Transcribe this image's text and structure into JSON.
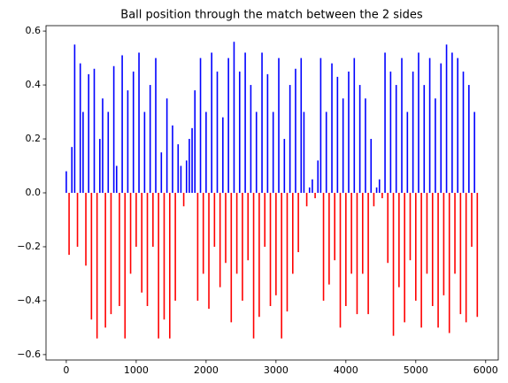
{
  "chart_data": {
    "type": "stem",
    "title": "Ball position through the match between the 2 sides",
    "x": [
      0,
      40,
      80,
      120,
      160,
      200,
      240,
      280,
      320,
      360,
      400,
      440,
      480,
      520,
      560,
      600,
      640,
      680,
      720,
      760,
      800,
      840,
      880,
      920,
      960,
      1000,
      1040,
      1080,
      1120,
      1160,
      1200,
      1240,
      1280,
      1320,
      1360,
      1400,
      1440,
      1480,
      1520,
      1560,
      1600,
      1640,
      1680,
      1720,
      1760,
      1800,
      1840,
      1880,
      1920,
      1960,
      2000,
      2040,
      2080,
      2120,
      2160,
      2200,
      2240,
      2280,
      2320,
      2360,
      2400,
      2440,
      2480,
      2520,
      2560,
      2600,
      2640,
      2680,
      2720,
      2760,
      2800,
      2840,
      2880,
      2920,
      2960,
      3000,
      3040,
      3080,
      3120,
      3160,
      3200,
      3240,
      3280,
      3320,
      3360,
      3400,
      3440,
      3480,
      3520,
      3560,
      3600,
      3640,
      3680,
      3720,
      3760,
      3800,
      3840,
      3880,
      3920,
      3960,
      4000,
      4040,
      4080,
      4120,
      4160,
      4200,
      4240,
      4280,
      4320,
      4360,
      4400,
      4440,
      4480,
      4520,
      4560,
      4600,
      4640,
      4680,
      4720,
      4760,
      4800,
      4840,
      4880,
      4920,
      4960,
      5000,
      5040,
      5080,
      5120,
      5160,
      5200,
      5240,
      5280,
      5320,
      5360,
      5400,
      5440,
      5480,
      5520,
      5560,
      5600,
      5640,
      5680,
      5720,
      5760,
      5800,
      5840,
      5880
    ],
    "values": [
      0.08,
      -0.23,
      0.17,
      0.55,
      -0.2,
      0.48,
      0.3,
      -0.27,
      0.44,
      -0.47,
      0.46,
      -0.54,
      0.2,
      0.35,
      -0.5,
      0.3,
      -0.45,
      0.47,
      0.1,
      -0.42,
      0.51,
      -0.54,
      0.38,
      -0.3,
      0.45,
      -0.2,
      0.52,
      -0.37,
      0.3,
      -0.42,
      0.4,
      -0.2,
      0.5,
      -0.54,
      0.15,
      -0.47,
      0.35,
      -0.54,
      0.25,
      -0.4,
      0.18,
      0.1,
      -0.05,
      0.12,
      0.2,
      0.24,
      0.38,
      -0.4,
      0.5,
      -0.3,
      0.3,
      -0.43,
      0.52,
      -0.2,
      0.45,
      -0.35,
      0.28,
      -0.26,
      0.5,
      -0.48,
      0.56,
      -0.3,
      0.45,
      -0.4,
      0.52,
      -0.25,
      0.4,
      -0.54,
      0.3,
      -0.46,
      0.52,
      -0.2,
      0.44,
      -0.42,
      0.3,
      -0.38,
      0.5,
      -0.54,
      0.2,
      -0.44,
      0.4,
      -0.3,
      0.46,
      -0.22,
      0.5,
      0.3,
      -0.05,
      0.02,
      0.05,
      -0.02,
      0.12,
      0.5,
      -0.4,
      0.3,
      -0.34,
      0.48,
      -0.25,
      0.43,
      -0.5,
      0.35,
      -0.42,
      0.45,
      -0.3,
      0.5,
      -0.45,
      0.4,
      -0.3,
      0.35,
      -0.45,
      0.2,
      -0.05,
      0.02,
      0.05,
      -0.02,
      0.52,
      -0.26,
      0.45,
      -0.53,
      0.4,
      -0.35,
      0.5,
      -0.48,
      0.3,
      -0.25,
      0.45,
      -0.4,
      0.52,
      -0.5,
      0.4,
      -0.3,
      0.5,
      -0.42,
      0.35,
      -0.5,
      0.48,
      -0.38,
      0.55,
      -0.52,
      0.52,
      -0.3,
      0.5,
      -0.45,
      0.45,
      -0.48,
      0.4,
      -0.2,
      0.3,
      -0.46
    ],
    "color_positive": "#0000ff",
    "color_negative": "#ff0000",
    "xlim": [
      -290,
      6180
    ],
    "xticks": [
      0,
      1000,
      2000,
      3000,
      4000,
      5000,
      6000
    ],
    "ylim": [
      -0.62,
      0.62
    ],
    "yticks": [
      {
        "value": -0.6,
        "label": "−0.6"
      },
      {
        "value": -0.4,
        "label": "−0.4"
      },
      {
        "value": -0.2,
        "label": "−0.2"
      },
      {
        "value": 0,
        "label": "0.0"
      },
      0.2,
      0.4,
      0.6
    ]
  }
}
